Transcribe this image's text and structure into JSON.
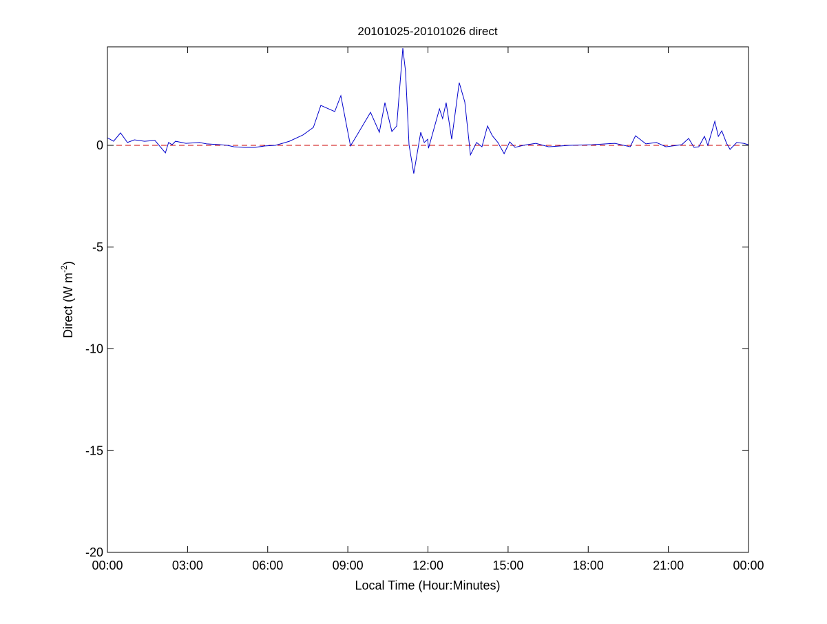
{
  "chart_data": {
    "type": "line",
    "title": "20101025-20101026 direct",
    "xlabel": "Local Time (Hour:Minutes)",
    "ylabel_main": "Direct (W m",
    "ylabel_sup": "-2",
    "ylabel_close": ")",
    "xlim": [
      0,
      24
    ],
    "ylim": [
      -20,
      4.84
    ],
    "x_unit": "hours",
    "xticks": [
      0,
      3,
      6,
      9,
      12,
      15,
      18,
      21,
      24
    ],
    "xtick_labels": [
      "00:00",
      "03:00",
      "06:00",
      "09:00",
      "12:00",
      "15:00",
      "18:00",
      "21:00",
      "00:00"
    ],
    "yticks": [
      0,
      -5,
      -10,
      -15,
      -20
    ],
    "ytick_labels": [
      "0",
      "-5",
      "-10",
      "-15",
      "-20"
    ],
    "grid": false,
    "series": [
      {
        "color": "#0000cc",
        "style": "solid",
        "x": [
          0,
          0.23,
          0.49,
          0.75,
          1.01,
          1.39,
          1.78,
          2.17,
          2.29,
          2.42,
          2.55,
          2.94,
          3.45,
          3.71,
          4.23,
          4.49,
          4.74,
          5.13,
          5.52,
          5.9,
          6.29,
          6.55,
          6.81,
          7.32,
          7.71,
          7.99,
          8.51,
          8.74,
          9.1,
          9.36,
          9.85,
          10.18,
          10.39,
          10.65,
          10.83,
          11.06,
          11.16,
          11.29,
          11.47,
          11.73,
          11.86,
          11.99,
          12.02,
          12.43,
          12.55,
          12.68,
          12.89,
          13.17,
          13.38,
          13.59,
          13.82,
          14.02,
          14.23,
          14.41,
          14.62,
          14.85,
          15.06,
          15.26,
          15.57,
          16.04,
          16.52,
          17.3,
          18.15,
          19.0,
          19.57,
          19.77,
          20.16,
          20.55,
          20.91,
          21.5,
          21.76,
          21.96,
          22.14,
          22.35,
          22.48,
          22.74,
          22.87,
          23.0,
          23.18,
          23.31,
          23.56,
          23.82,
          24
        ],
        "y": [
          0.37,
          0.2,
          0.61,
          0.14,
          0.27,
          0.2,
          0.24,
          -0.37,
          0.14,
          0.03,
          0.2,
          0.1,
          0.14,
          0.07,
          0.03,
          0,
          -0.07,
          -0.1,
          -0.1,
          -0.03,
          0,
          0.1,
          0.2,
          0.51,
          0.88,
          1.96,
          1.66,
          2.44,
          -0.03,
          0.54,
          1.62,
          0.64,
          2.1,
          0.68,
          0.95,
          4.77,
          3.65,
          0.03,
          -1.39,
          0.64,
          0.14,
          0.3,
          -0.14,
          1.79,
          1.32,
          2.1,
          0.3,
          3.08,
          2.13,
          -0.47,
          0.14,
          -0.07,
          0.95,
          0.47,
          0.14,
          -0.41,
          0.17,
          -0.1,
          0,
          0.1,
          -0.07,
          0,
          0.03,
          0.1,
          -0.07,
          0.47,
          0.07,
          0.14,
          -0.07,
          0.03,
          0.34,
          -0.1,
          -0.07,
          0.44,
          0,
          1.18,
          0.44,
          0.71,
          0.1,
          -0.2,
          0.14,
          0.1,
          0.03
        ]
      },
      {
        "color": "#cc0000",
        "style": "dashed",
        "x": [
          0,
          24
        ],
        "y": [
          0,
          0
        ]
      }
    ]
  }
}
